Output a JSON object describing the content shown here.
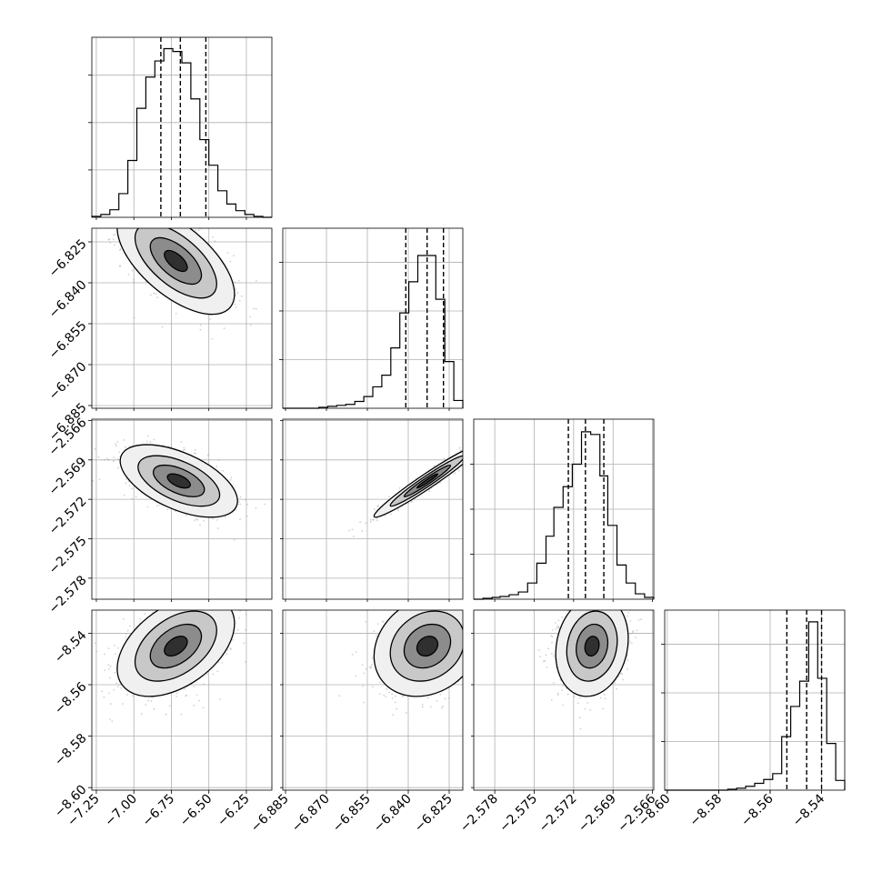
{
  "chart_data": {
    "type": "corner",
    "grid": true,
    "parameters": [
      {
        "range": [
          -7.28,
          -6.08
        ],
        "ticks": [
          -7.25,
          -7.0,
          -6.75,
          -6.5,
          -6.25
        ],
        "tick_labels": [
          "−7.25",
          "−7.00",
          "−6.75",
          "−6.50",
          "−6.25"
        ]
      },
      {
        "range": [
          -6.886,
          -6.82
        ],
        "ticks": [
          -6.885,
          -6.87,
          -6.855,
          -6.84,
          -6.825
        ],
        "tick_labels": [
          "−6.885",
          "−6.870",
          "−6.855",
          "−6.840",
          "−6.825"
        ]
      },
      {
        "range": [
          -2.5796,
          -2.5659
        ],
        "ticks": [
          -2.578,
          -2.575,
          -2.572,
          -2.569,
          -2.566
        ],
        "tick_labels": [
          "−2.578",
          "−2.575",
          "−2.572",
          "−2.569",
          "−2.566"
        ]
      },
      {
        "range": [
          -8.601,
          -8.531
        ],
        "ticks": [
          -8.6,
          -8.58,
          -8.56,
          -8.54
        ],
        "tick_labels": [
          "−8.60",
          "−8.58",
          "−8.56",
          "−8.54"
        ]
      }
    ],
    "marginals": [
      {
        "edges": [
          -7.28,
          -7.22,
          -7.16,
          -7.1,
          -7.04,
          -6.98,
          -6.92,
          -6.86,
          -6.8,
          -6.74,
          -6.68,
          -6.62,
          -6.56,
          -6.5,
          -6.44,
          -6.38,
          -6.32,
          -6.26,
          -6.2,
          -6.14,
          -6.08
        ],
        "counts": [
          1,
          3,
          8,
          25,
          60,
          115,
          148,
          165,
          178,
          175,
          163,
          125,
          82,
          55,
          28,
          14,
          7,
          3,
          1,
          0
        ],
        "quantiles": [
          -6.82,
          -6.69,
          -6.52
        ],
        "ymax": 190
      },
      {
        "edges": [
          -6.886,
          -6.8827,
          -6.8794,
          -6.8761,
          -6.8728,
          -6.8695,
          -6.8662,
          -6.8629,
          -6.8596,
          -6.8563,
          -6.853,
          -6.8497,
          -6.8464,
          -6.8431,
          -6.8398,
          -6.8365,
          -6.8332,
          -6.8299,
          -6.8266,
          -6.8233,
          -6.82
        ],
        "counts": [
          0,
          0,
          0,
          0,
          1,
          2,
          3,
          4,
          7,
          12,
          22,
          34,
          62,
          98,
          130,
          157,
          157,
          112,
          48,
          8
        ],
        "quantiles": [
          -6.8409,
          -6.8331,
          -6.8271
        ],
        "ymax": 185
      },
      {
        "edges": [
          -2.5796,
          -2.5789,
          -2.5782,
          -2.5776,
          -2.5769,
          -2.5762,
          -2.5755,
          -2.5748,
          -2.5741,
          -2.5735,
          -2.5728,
          -2.5721,
          -2.5714,
          -2.5707,
          -2.57,
          -2.5694,
          -2.5687,
          -2.568,
          -2.5673,
          -2.5666,
          -2.5659
        ],
        "counts": [
          0,
          1,
          2,
          3,
          5,
          8,
          18,
          40,
          70,
          102,
          125,
          150,
          186,
          183,
          137,
          82,
          38,
          18,
          6,
          2
        ],
        "quantiles": [
          -2.5724,
          -2.5711,
          -2.5697
        ],
        "ymax": 200
      },
      {
        "edges": [
          -8.601,
          -8.5975,
          -8.594,
          -8.5905,
          -8.587,
          -8.5835,
          -8.58,
          -8.5765,
          -8.573,
          -8.5695,
          -8.566,
          -8.5625,
          -8.559,
          -8.5555,
          -8.552,
          -8.5485,
          -8.545,
          -8.5415,
          -8.538,
          -8.5345,
          -8.531
        ],
        "counts": [
          0,
          0,
          0,
          0,
          0,
          0,
          0,
          1,
          2,
          4,
          7,
          11,
          17,
          55,
          86,
          112,
          173,
          115,
          48,
          10
        ],
        "quantiles": [
          -8.5535,
          -8.5458,
          -8.54
        ],
        "ymax": 185
      }
    ],
    "joint": [
      {
        "row": 1,
        "col": 0,
        "mean": [
          -6.72,
          -6.832
        ],
        "sd": [
          0.17,
          0.0085
        ],
        "rho": -0.62
      },
      {
        "row": 2,
        "col": 0,
        "mean": [
          -6.7,
          -2.5706
        ],
        "sd": [
          0.17,
          0.0012
        ],
        "rho": -0.55
      },
      {
        "row": 2,
        "col": 1,
        "mean": [
          -6.833,
          -2.5706
        ],
        "sd": [
          0.0085,
          0.0012
        ],
        "rho": 0.97
      },
      {
        "row": 3,
        "col": 0,
        "mean": [
          -6.72,
          -8.545
        ],
        "sd": [
          0.17,
          0.0085
        ],
        "rho": 0.45
      },
      {
        "row": 3,
        "col": 1,
        "mean": [
          -6.833,
          -8.545
        ],
        "sd": [
          0.0085,
          0.0085
        ],
        "rho": 0.2
      },
      {
        "row": 3,
        "col": 2,
        "mean": [
          -2.5706,
          -8.545
        ],
        "sd": [
          0.0012,
          0.0085
        ],
        "rho": 0.15
      }
    ]
  }
}
